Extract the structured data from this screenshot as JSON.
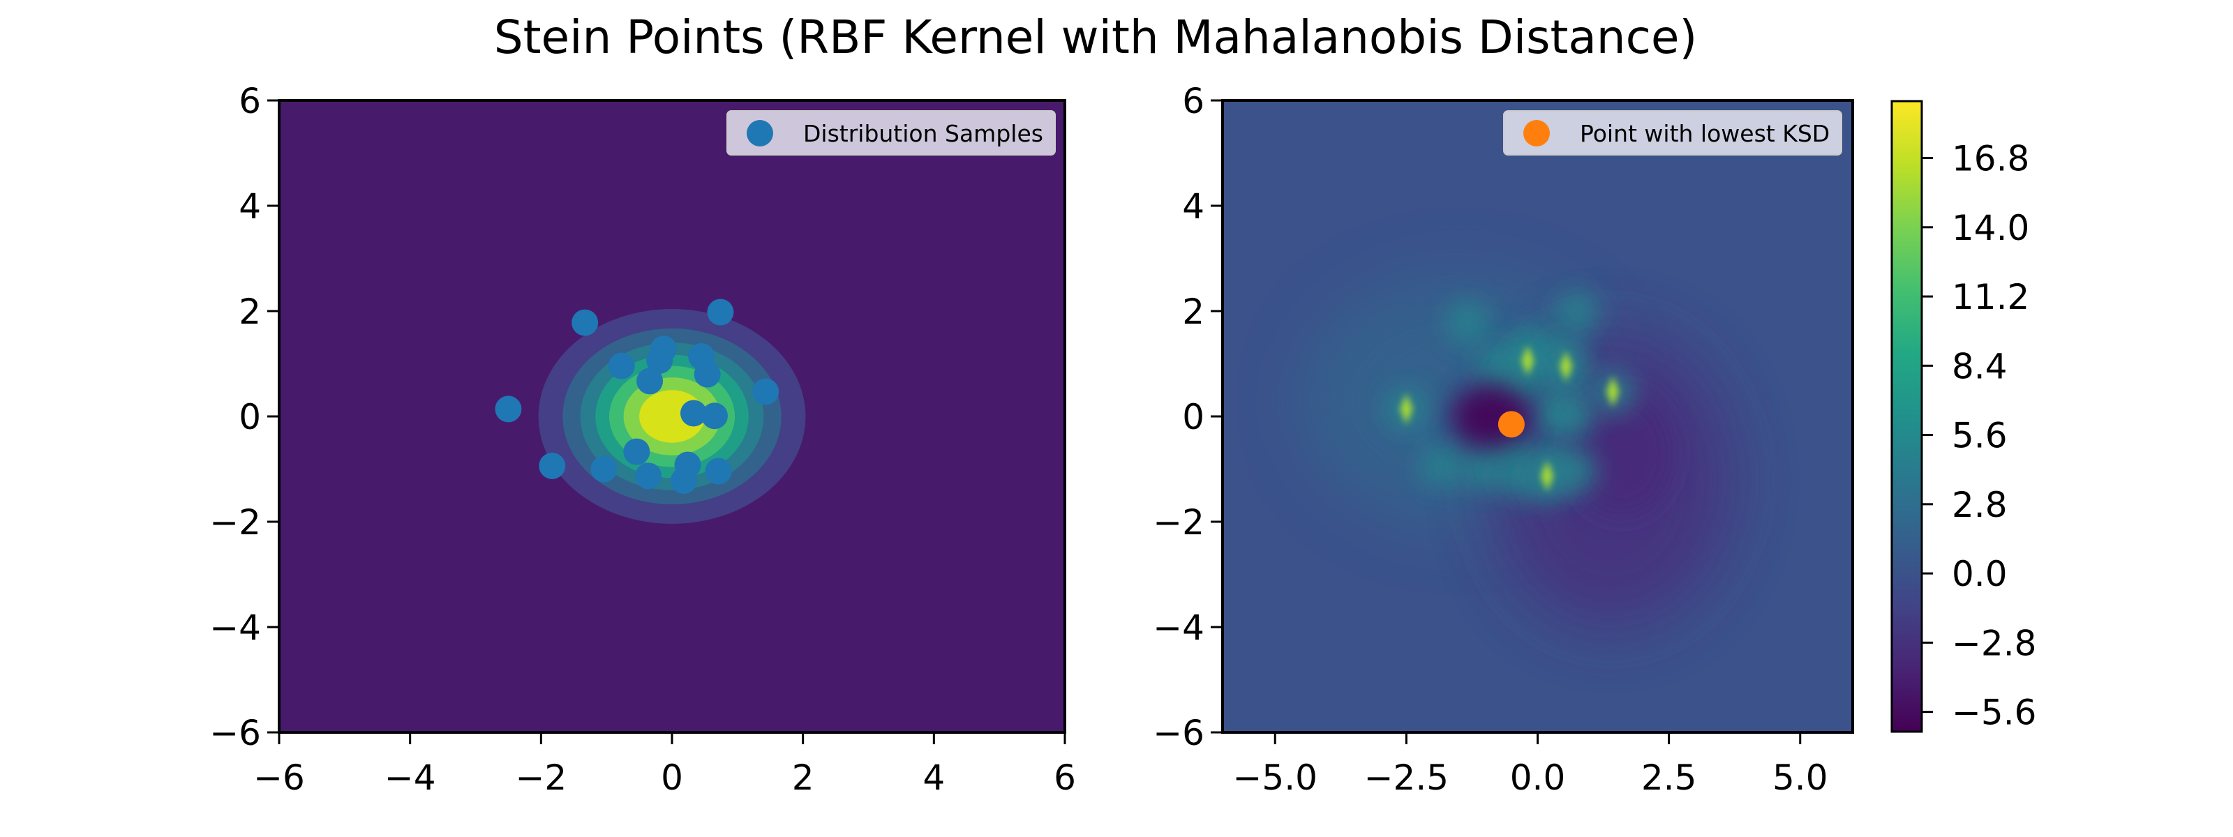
{
  "title": "Stein Points (RBF Kernel with Mahalanobis Distance)",
  "chart_data": [
    {
      "type": "scatter",
      "overlay": "filled contour",
      "colormap": "viridis",
      "xlim": [
        -6,
        6
      ],
      "ylim": [
        -6,
        6
      ],
      "xticks": [
        "−6",
        "−4",
        "−2",
        "0",
        "2",
        "4",
        "6"
      ],
      "yticks": [
        "−6",
        "−4",
        "−2",
        "0",
        "2",
        "4",
        "6"
      ],
      "grid": false,
      "legend": {
        "placement": "upper right",
        "entries": [
          {
            "label": "Distribution Samples",
            "color": "#1f77b4"
          }
        ]
      },
      "contour_center": [
        0,
        0
      ],
      "series": [
        {
          "name": "Distribution Samples",
          "color": "#1f77b4",
          "points": [
            [
              -1.33,
              1.78
            ],
            [
              0.74,
              1.98
            ],
            [
              -0.13,
              1.28
            ],
            [
              -0.19,
              1.06
            ],
            [
              -0.77,
              0.96
            ],
            [
              0.45,
              1.14
            ],
            [
              0.54,
              0.8
            ],
            [
              -0.34,
              0.67
            ],
            [
              1.43,
              0.47
            ],
            [
              -2.5,
              0.14
            ],
            [
              0.33,
              0.06
            ],
            [
              0.65,
              0.01
            ],
            [
              -0.54,
              -0.67
            ],
            [
              -1.83,
              -0.94
            ],
            [
              -1.04,
              -1.0
            ],
            [
              -0.36,
              -1.13
            ],
            [
              0.24,
              -0.92
            ],
            [
              0.18,
              -1.22
            ],
            [
              0.71,
              -1.04
            ]
          ]
        }
      ]
    },
    {
      "type": "heatmap",
      "colormap": "viridis",
      "xlim": [
        -6,
        6
      ],
      "ylim": [
        -6,
        6
      ],
      "xticks": [
        "−5.0",
        "−2.5",
        "0.0",
        "2.5",
        "5.0"
      ],
      "yticks": [
        "−6",
        "−4",
        "−2",
        "0",
        "2",
        "4",
        "6"
      ],
      "grid": false,
      "legend": {
        "placement": "upper right",
        "entries": [
          {
            "label": "Point with lowest KSD",
            "color": "#ff7f0e"
          }
        ]
      },
      "series": [
        {
          "name": "Point with lowest KSD",
          "color": "#ff7f0e",
          "points": [
            [
              -0.5,
              -0.15
            ]
          ]
        }
      ],
      "colorbar": {
        "range": [
          -6.4,
          19.1
        ],
        "ticks": [
          "16.8",
          "14.0",
          "11.2",
          "8.4",
          "5.6",
          "2.8",
          "0.0",
          "−2.8",
          "−5.6"
        ]
      }
    }
  ]
}
